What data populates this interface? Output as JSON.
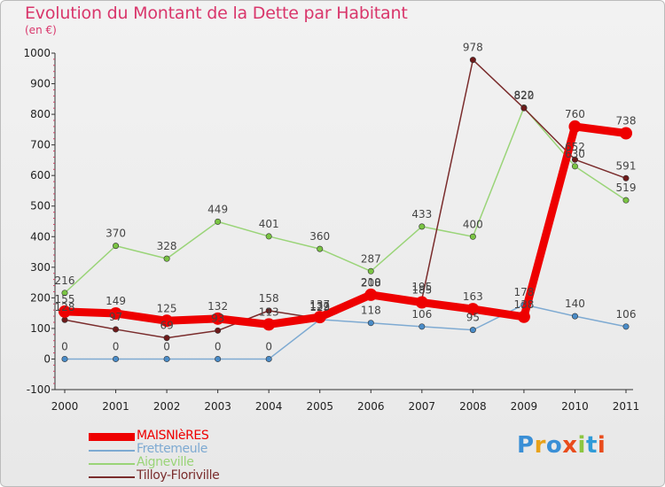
{
  "chart_data": {
    "type": "line",
    "title": "Evolution du Montant de la Dette par Habitant",
    "subtitle": "(en €)",
    "categories": [
      "2000",
      "2001",
      "2002",
      "2003",
      "2004",
      "2005",
      "2006",
      "2007",
      "2008",
      "2009",
      "2010",
      "2011"
    ],
    "ylim": [
      -100,
      1000
    ],
    "yticks": [
      "1000",
      "900",
      "800",
      "700",
      "600",
      "500",
      "400",
      "300",
      "200",
      "100",
      "0",
      "-100"
    ],
    "grid": false,
    "legend_position": "bottom-left",
    "series": [
      {
        "name": "MAISNIèRES",
        "color": "#ee0000",
        "marker": "#ee0000",
        "thick": true,
        "values": [
          155,
          149,
          125,
          132,
          113,
          137,
          210,
          185,
          163,
          138,
          760,
          738
        ]
      },
      {
        "name": "Frettemeule",
        "color": "#7eaad2",
        "marker": "#4a8cc8",
        "thick": false,
        "values": [
          0,
          0,
          0,
          0,
          0,
          129,
          118,
          106,
          95,
          178,
          140,
          106
        ]
      },
      {
        "name": "Aigneville",
        "color": "#9ad478",
        "marker": "#7ac443",
        "thick": false,
        "values": [
          216,
          370,
          328,
          449,
          401,
          360,
          287,
          433,
          400,
          822,
          630,
          519
        ]
      },
      {
        "name": "Tilloy-Floriville",
        "color": "#7a2c2c",
        "marker": "#6e1a1a",
        "thick": false,
        "values": [
          128,
          97,
          69,
          93,
          158,
          132,
          208,
          195,
          978,
          820,
          652,
          591
        ]
      }
    ],
    "label_order": [
      "Frettemeule",
      "Aigneville",
      "Tilloy-Floriville",
      "MAISNIèRES"
    ]
  },
  "logo": {
    "text": "Proxiti",
    "colors": [
      "#3a8fd6",
      "#e8a21a",
      "#3a8fd6",
      "#e94c1c",
      "#8cc640",
      "#2f9bd8",
      "#e94c1c"
    ]
  }
}
